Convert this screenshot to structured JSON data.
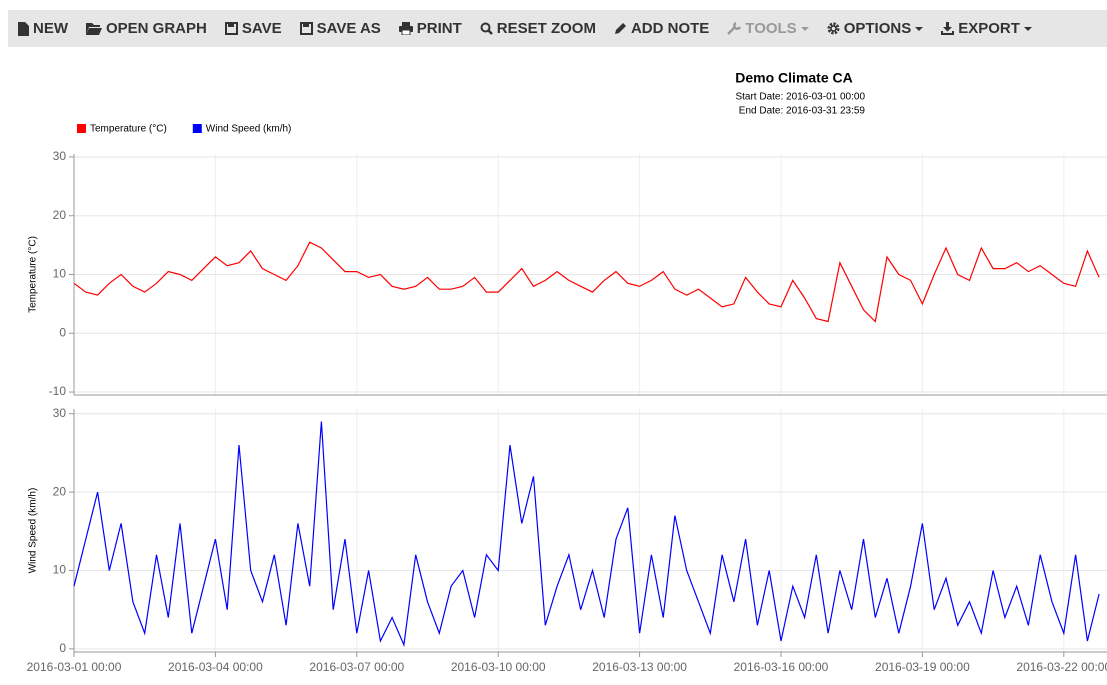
{
  "toolbar": {
    "items": [
      "NEW",
      "OPEN GRAPH",
      "SAVE",
      "SAVE AS",
      "PRINT",
      "RESET ZOOM",
      "ADD NOTE",
      "TOOLS",
      "OPTIONS",
      "EXPORT"
    ]
  },
  "header": {
    "title": "Demo Climate CA",
    "start_date": "Start Date: 2016-03-01 00:00",
    "end_date": "End Date: 2016-03-31 23:59"
  },
  "chart_data": [
    {
      "type": "line",
      "y_label": "Temperature (°C)",
      "x": [
        "2016-03-01 00:00",
        "2016-03-01 06:00",
        "2016-03-01 12:00",
        "2016-03-01 18:00",
        "2016-03-02 00:00",
        "2016-03-02 06:00",
        "2016-03-02 12:00",
        "2016-03-02 18:00",
        "2016-03-03 00:00",
        "2016-03-03 06:00",
        "2016-03-03 12:00",
        "2016-03-03 18:00",
        "2016-03-04 00:00",
        "2016-03-04 06:00",
        "2016-03-04 12:00",
        "2016-03-04 18:00",
        "2016-03-05 00:00",
        "2016-03-05 06:00",
        "2016-03-05 12:00",
        "2016-03-05 18:00",
        "2016-03-06 00:00",
        "2016-03-06 06:00",
        "2016-03-06 12:00",
        "2016-03-06 18:00",
        "2016-03-07 00:00",
        "2016-03-07 06:00",
        "2016-03-07 12:00",
        "2016-03-07 18:00",
        "2016-03-08 00:00",
        "2016-03-08 06:00",
        "2016-03-08 12:00",
        "2016-03-08 18:00",
        "2016-03-09 00:00",
        "2016-03-09 06:00",
        "2016-03-09 12:00",
        "2016-03-09 18:00",
        "2016-03-10 00:00",
        "2016-03-10 06:00",
        "2016-03-10 12:00",
        "2016-03-10 18:00",
        "2016-03-11 00:00",
        "2016-03-11 06:00",
        "2016-03-11 12:00",
        "2016-03-11 18:00",
        "2016-03-12 00:00",
        "2016-03-12 06:00",
        "2016-03-12 12:00",
        "2016-03-12 18:00",
        "2016-03-13 00:00",
        "2016-03-13 06:00",
        "2016-03-13 12:00",
        "2016-03-13 18:00",
        "2016-03-14 00:00",
        "2016-03-14 06:00",
        "2016-03-14 12:00",
        "2016-03-14 18:00",
        "2016-03-15 00:00",
        "2016-03-15 06:00",
        "2016-03-15 12:00",
        "2016-03-15 18:00",
        "2016-03-16 00:00",
        "2016-03-16 06:00",
        "2016-03-16 12:00",
        "2016-03-16 18:00",
        "2016-03-17 00:00",
        "2016-03-17 06:00",
        "2016-03-17 12:00",
        "2016-03-17 18:00",
        "2016-03-18 00:00",
        "2016-03-18 06:00",
        "2016-03-18 12:00",
        "2016-03-18 18:00",
        "2016-03-19 00:00",
        "2016-03-19 06:00",
        "2016-03-19 12:00",
        "2016-03-19 18:00",
        "2016-03-20 00:00",
        "2016-03-20 06:00",
        "2016-03-20 12:00",
        "2016-03-20 18:00",
        "2016-03-21 00:00",
        "2016-03-21 06:00",
        "2016-03-21 12:00",
        "2016-03-21 18:00",
        "2016-03-22 00:00",
        "2016-03-22 06:00",
        "2016-03-22 12:00",
        "2016-03-22 18:00"
      ],
      "xlim": [
        "2016-03-01 00:00",
        "2016-03-22 22:00"
      ],
      "ylim": [
        -10.5,
        30.5
      ],
      "yticks": [
        -10,
        0,
        10,
        20,
        30
      ],
      "grid": true,
      "series": [
        {
          "name": "Temperature (°C)",
          "color": "#ff0000",
          "values": [
            8.5,
            7,
            6.5,
            8.5,
            10,
            8,
            7,
            8.5,
            10.5,
            10,
            9,
            11,
            13,
            11.5,
            12,
            14,
            11,
            10,
            9,
            11.5,
            15.5,
            14.5,
            12.5,
            10.5,
            10.5,
            9.5,
            10,
            8,
            7.5,
            8,
            9.5,
            7.5,
            7.5,
            8,
            9.5,
            7,
            7,
            9,
            11,
            8,
            9,
            10.5,
            9,
            8,
            7,
            9,
            10.5,
            8.5,
            8,
            9,
            10.5,
            7.5,
            6.5,
            7.5,
            6,
            4.5,
            5,
            9.5,
            7,
            5,
            4.5,
            9,
            6,
            2.5,
            2,
            12,
            8,
            4,
            2,
            13,
            10,
            9,
            5,
            10,
            14.5,
            10,
            9,
            14.5,
            11,
            11,
            12,
            10.5,
            11.5,
            10,
            8.5,
            8,
            14,
            9.5
          ]
        }
      ]
    },
    {
      "type": "line",
      "y_label": "Wind Speed (km/h)",
      "x": [
        "2016-03-01 00:00",
        "2016-03-01 06:00",
        "2016-03-01 12:00",
        "2016-03-01 18:00",
        "2016-03-02 00:00",
        "2016-03-02 06:00",
        "2016-03-02 12:00",
        "2016-03-02 18:00",
        "2016-03-03 00:00",
        "2016-03-03 06:00",
        "2016-03-03 12:00",
        "2016-03-03 18:00",
        "2016-03-04 00:00",
        "2016-03-04 06:00",
        "2016-03-04 12:00",
        "2016-03-04 18:00",
        "2016-03-05 00:00",
        "2016-03-05 06:00",
        "2016-03-05 12:00",
        "2016-03-05 18:00",
        "2016-03-06 00:00",
        "2016-03-06 06:00",
        "2016-03-06 12:00",
        "2016-03-06 18:00",
        "2016-03-07 00:00",
        "2016-03-07 06:00",
        "2016-03-07 12:00",
        "2016-03-07 18:00",
        "2016-03-08 00:00",
        "2016-03-08 06:00",
        "2016-03-08 12:00",
        "2016-03-08 18:00",
        "2016-03-09 00:00",
        "2016-03-09 06:00",
        "2016-03-09 12:00",
        "2016-03-09 18:00",
        "2016-03-10 00:00",
        "2016-03-10 06:00",
        "2016-03-10 12:00",
        "2016-03-10 18:00",
        "2016-03-11 00:00",
        "2016-03-11 06:00",
        "2016-03-11 12:00",
        "2016-03-11 18:00",
        "2016-03-12 00:00",
        "2016-03-12 06:00",
        "2016-03-12 12:00",
        "2016-03-12 18:00",
        "2016-03-13 00:00",
        "2016-03-13 06:00",
        "2016-03-13 12:00",
        "2016-03-13 18:00",
        "2016-03-14 00:00",
        "2016-03-14 06:00",
        "2016-03-14 12:00",
        "2016-03-14 18:00",
        "2016-03-15 00:00",
        "2016-03-15 06:00",
        "2016-03-15 12:00",
        "2016-03-15 18:00",
        "2016-03-16 00:00",
        "2016-03-16 06:00",
        "2016-03-16 12:00",
        "2016-03-16 18:00",
        "2016-03-17 00:00",
        "2016-03-17 06:00",
        "2016-03-17 12:00",
        "2016-03-17 18:00",
        "2016-03-18 00:00",
        "2016-03-18 06:00",
        "2016-03-18 12:00",
        "2016-03-18 18:00",
        "2016-03-19 00:00",
        "2016-03-19 06:00",
        "2016-03-19 12:00",
        "2016-03-19 18:00",
        "2016-03-20 00:00",
        "2016-03-20 06:00",
        "2016-03-20 12:00",
        "2016-03-20 18:00",
        "2016-03-21 00:00",
        "2016-03-21 06:00",
        "2016-03-21 12:00",
        "2016-03-21 18:00",
        "2016-03-22 00:00",
        "2016-03-22 06:00",
        "2016-03-22 12:00",
        "2016-03-22 18:00"
      ],
      "xlim": [
        "2016-03-01 00:00",
        "2016-03-22 22:00"
      ],
      "xticks": [
        "2016-03-01 00:00",
        "2016-03-04 00:00",
        "2016-03-07 00:00",
        "2016-03-10 00:00",
        "2016-03-13 00:00",
        "2016-03-16 00:00",
        "2016-03-19 00:00",
        "2016-03-22 00:00"
      ],
      "ylim": [
        -0.4,
        30.6
      ],
      "yticks": [
        0,
        10,
        20,
        30
      ],
      "grid": true,
      "series": [
        {
          "name": "Wind Speed (km/h)",
          "color": "#0000ff",
          "values": [
            8,
            14,
            20,
            10,
            16,
            6,
            2,
            12,
            4,
            16,
            2,
            8,
            14,
            5,
            26,
            10,
            6,
            12,
            3,
            16,
            8,
            29,
            5,
            14,
            2,
            10,
            1,
            4,
            0.5,
            12,
            6,
            2,
            8,
            10,
            4,
            12,
            10,
            26,
            16,
            22,
            3,
            8,
            12,
            5,
            10,
            4,
            14,
            18,
            2,
            12,
            4,
            17,
            10,
            6,
            2,
            12,
            6,
            14,
            3,
            10,
            1,
            8,
            4,
            12,
            2,
            10,
            5,
            14,
            4,
            9,
            2,
            8,
            16,
            5,
            9,
            3,
            6,
            2,
            10,
            4,
            8,
            3,
            12,
            6,
            2,
            12,
            1,
            7
          ]
        }
      ]
    }
  ]
}
